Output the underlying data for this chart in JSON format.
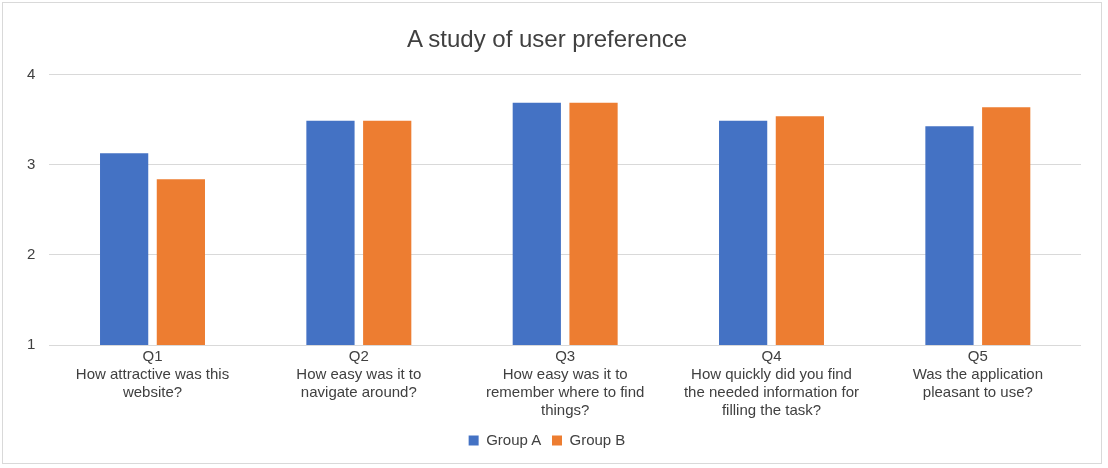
{
  "chart_data": {
    "type": "bar",
    "title": "A study of user preference",
    "categories": [
      "Q1\nHow attractive was this\nwebsite?",
      "Q2\nHow easy was it to\nnavigate around?",
      "Q3\nHow easy was it to\nremember where to find\nthings?",
      "Q4\nHow quickly did you find\nthe needed information for\nfilling the task?",
      "Q5\nWas the application\npleasant to use?"
    ],
    "series": [
      {
        "name": "Group A",
        "color": "#4472c4",
        "values": [
          3.13,
          3.49,
          3.69,
          3.49,
          3.43
        ]
      },
      {
        "name": "Group B",
        "color": "#ed7d31",
        "values": [
          2.84,
          3.49,
          3.69,
          3.54,
          3.64
        ]
      }
    ],
    "ylim": [
      1,
      4
    ],
    "yticks": [
      1,
      2,
      3,
      4
    ],
    "grid": "y",
    "legend": "bottom"
  }
}
